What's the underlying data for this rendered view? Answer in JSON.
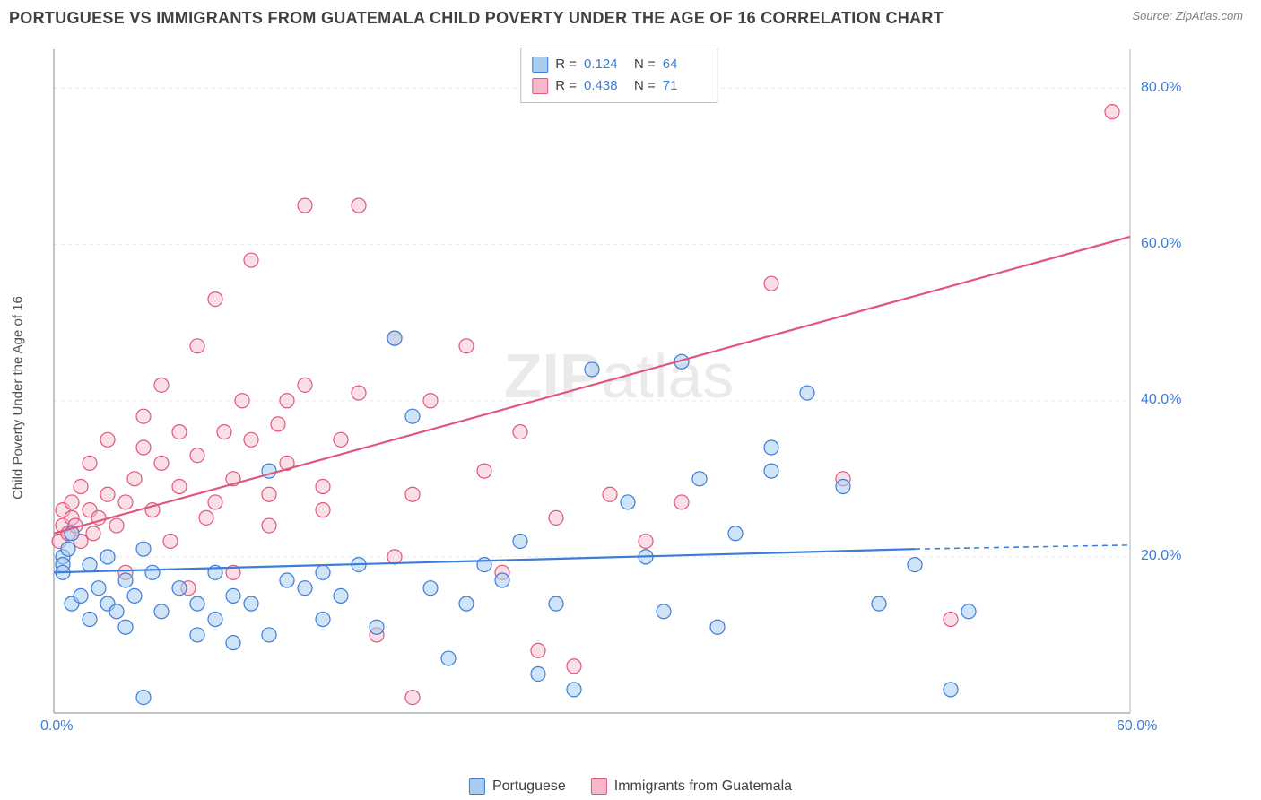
{
  "header": {
    "title": "PORTUGUESE VS IMMIGRANTS FROM GUATEMALA CHILD POVERTY UNDER THE AGE OF 16 CORRELATION CHART",
    "source": "Source: ZipAtlas.com"
  },
  "watermark": {
    "zip": "ZIP",
    "atlas": "atlas"
  },
  "y_axis": {
    "label": "Child Poverty Under the Age of 16"
  },
  "stats": {
    "rows": [
      {
        "r_label": "R =",
        "r": "0.124",
        "n_label": "N =",
        "n": "64"
      },
      {
        "r_label": "R =",
        "r": "0.438",
        "n_label": "N =",
        "n": "71"
      }
    ]
  },
  "legend": {
    "series1": "Portuguese",
    "series2": "Immigrants from Guatemala"
  },
  "chart": {
    "type": "scatter",
    "xlim": [
      0,
      60
    ],
    "ylim": [
      0,
      85
    ],
    "x_ticks": [
      {
        "v": 0,
        "label": "0.0%"
      },
      {
        "v": 60,
        "label": "60.0%"
      }
    ],
    "y_ticks": [
      {
        "v": 20,
        "label": "20.0%"
      },
      {
        "v": 40,
        "label": "40.0%"
      },
      {
        "v": 60,
        "label": "60.0%"
      },
      {
        "v": 80,
        "label": "80.0%"
      }
    ],
    "grid_y": [
      20,
      40,
      60,
      80
    ],
    "background_color": "#ffffff",
    "grid_color": "#e8e8e8",
    "axis_color": "#b0b0b0",
    "marker_radius": 8,
    "marker_stroke_width": 1.2,
    "line_width": 2.2,
    "series": [
      {
        "name": "Portuguese",
        "fill": "#a9cdf0",
        "stroke": "#3b7dd8",
        "fill_opacity": 0.55,
        "trend": {
          "x1": 0,
          "y1": 18,
          "x2_solid": 48,
          "y2_solid": 21,
          "x2_dash": 60,
          "y2_dash": 21.5
        },
        "points": [
          [
            0.5,
            20
          ],
          [
            0.5,
            19
          ],
          [
            0.5,
            18
          ],
          [
            0.8,
            21
          ],
          [
            1,
            23
          ],
          [
            1,
            14
          ],
          [
            1.5,
            15
          ],
          [
            2,
            19
          ],
          [
            2,
            12
          ],
          [
            2.5,
            16
          ],
          [
            3,
            20
          ],
          [
            3,
            14
          ],
          [
            3.5,
            13
          ],
          [
            4,
            17
          ],
          [
            4,
            11
          ],
          [
            4.5,
            15
          ],
          [
            5,
            21
          ],
          [
            5,
            2
          ],
          [
            5.5,
            18
          ],
          [
            6,
            13
          ],
          [
            7,
            16
          ],
          [
            8,
            10
          ],
          [
            8,
            14
          ],
          [
            9,
            12
          ],
          [
            9,
            18
          ],
          [
            10,
            9
          ],
          [
            10,
            15
          ],
          [
            11,
            14
          ],
          [
            12,
            10
          ],
          [
            12,
            31
          ],
          [
            13,
            17
          ],
          [
            14,
            16
          ],
          [
            15,
            12
          ],
          [
            15,
            18
          ],
          [
            16,
            15
          ],
          [
            17,
            19
          ],
          [
            18,
            11
          ],
          [
            19,
            48
          ],
          [
            20,
            38
          ],
          [
            21,
            16
          ],
          [
            22,
            7
          ],
          [
            23,
            14
          ],
          [
            24,
            19
          ],
          [
            25,
            17
          ],
          [
            26,
            22
          ],
          [
            27,
            5
          ],
          [
            28,
            14
          ],
          [
            29,
            3
          ],
          [
            30,
            44
          ],
          [
            32,
            27
          ],
          [
            33,
            20
          ],
          [
            34,
            13
          ],
          [
            35,
            45
          ],
          [
            36,
            30
          ],
          [
            37,
            11
          ],
          [
            38,
            23
          ],
          [
            40,
            34
          ],
          [
            40,
            31
          ],
          [
            42,
            41
          ],
          [
            44,
            29
          ],
          [
            46,
            14
          ],
          [
            48,
            19
          ],
          [
            50,
            3
          ],
          [
            51,
            13
          ]
        ]
      },
      {
        "name": "Immigrants from Guatemala",
        "fill": "#f5b8c9",
        "stroke": "#e0567c",
        "fill_opacity": 0.45,
        "trend": {
          "x1": 0,
          "y1": 23,
          "x2_solid": 60,
          "y2_solid": 61
        },
        "points": [
          [
            0.3,
            22
          ],
          [
            0.5,
            24
          ],
          [
            0.5,
            26
          ],
          [
            0.8,
            23
          ],
          [
            1,
            25
          ],
          [
            1,
            27
          ],
          [
            1.2,
            24
          ],
          [
            1.5,
            29
          ],
          [
            1.5,
            22
          ],
          [
            2,
            26
          ],
          [
            2,
            32
          ],
          [
            2.2,
            23
          ],
          [
            2.5,
            25
          ],
          [
            3,
            28
          ],
          [
            3,
            35
          ],
          [
            3.5,
            24
          ],
          [
            4,
            27
          ],
          [
            4,
            18
          ],
          [
            4.5,
            30
          ],
          [
            5,
            38
          ],
          [
            5,
            34
          ],
          [
            5.5,
            26
          ],
          [
            6,
            32
          ],
          [
            6,
            42
          ],
          [
            6.5,
            22
          ],
          [
            7,
            29
          ],
          [
            7,
            36
          ],
          [
            7.5,
            16
          ],
          [
            8,
            33
          ],
          [
            8,
            47
          ],
          [
            8.5,
            25
          ],
          [
            9,
            27
          ],
          [
            9,
            53
          ],
          [
            9.5,
            36
          ],
          [
            10,
            30
          ],
          [
            10,
            18
          ],
          [
            10.5,
            40
          ],
          [
            11,
            58
          ],
          [
            11,
            35
          ],
          [
            12,
            28
          ],
          [
            12,
            24
          ],
          [
            12.5,
            37
          ],
          [
            13,
            32
          ],
          [
            13,
            40
          ],
          [
            14,
            42
          ],
          [
            14,
            65
          ],
          [
            15,
            26
          ],
          [
            15,
            29
          ],
          [
            16,
            35
          ],
          [
            17,
            41
          ],
          [
            17,
            65
          ],
          [
            18,
            10
          ],
          [
            19,
            48
          ],
          [
            19,
            20
          ],
          [
            20,
            2
          ],
          [
            20,
            28
          ],
          [
            21,
            40
          ],
          [
            23,
            47
          ],
          [
            24,
            31
          ],
          [
            25,
            18
          ],
          [
            26,
            36
          ],
          [
            27,
            8
          ],
          [
            28,
            25
          ],
          [
            29,
            6
          ],
          [
            31,
            28
          ],
          [
            33,
            22
          ],
          [
            35,
            27
          ],
          [
            40,
            55
          ],
          [
            44,
            30
          ],
          [
            50,
            12
          ],
          [
            59,
            77
          ]
        ]
      }
    ]
  }
}
